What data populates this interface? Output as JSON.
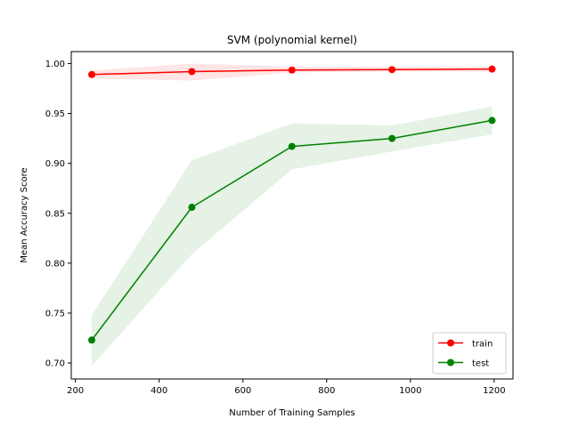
{
  "chart_data": {
    "type": "line",
    "title": "SVM (polynomial kernel)",
    "xlabel": "Number of Training Samples",
    "ylabel": "Mean Accuracy Score",
    "xlim": [
      190,
      1245
    ],
    "ylim": [
      0.684,
      1.012
    ],
    "xticks": [
      200,
      400,
      600,
      800,
      1000,
      1200
    ],
    "yticks": [
      0.7,
      0.75,
      0.8,
      0.85,
      0.9,
      0.95,
      1.0
    ],
    "xtick_labels": [
      "200",
      "400",
      "600",
      "800",
      "1000",
      "1200"
    ],
    "ytick_labels": [
      "0.70",
      "0.75",
      "0.80",
      "0.85",
      "0.90",
      "0.95",
      "1.00"
    ],
    "grid": false,
    "legend_position": "bottom-right",
    "series": [
      {
        "name": "train",
        "color": "#ff0000",
        "marker": "circle",
        "x": [
          239,
          478,
          717,
          956,
          1195
        ],
        "y": [
          0.989,
          0.992,
          0.9935,
          0.994,
          0.9945
        ],
        "band_lower": [
          0.985,
          0.983,
          0.991,
          0.992,
          0.992
        ],
        "band_upper": [
          0.993,
          1.0,
          0.997,
          0.997,
          0.997
        ]
      },
      {
        "name": "test",
        "color": "#008000",
        "marker": "circle",
        "x": [
          239,
          478,
          717,
          956,
          1195
        ],
        "y": [
          0.723,
          0.856,
          0.917,
          0.925,
          0.943
        ],
        "band_lower": [
          0.697,
          0.809,
          0.894,
          0.912,
          0.929
        ],
        "band_upper": [
          0.748,
          0.903,
          0.94,
          0.938,
          0.957
        ]
      }
    ]
  }
}
